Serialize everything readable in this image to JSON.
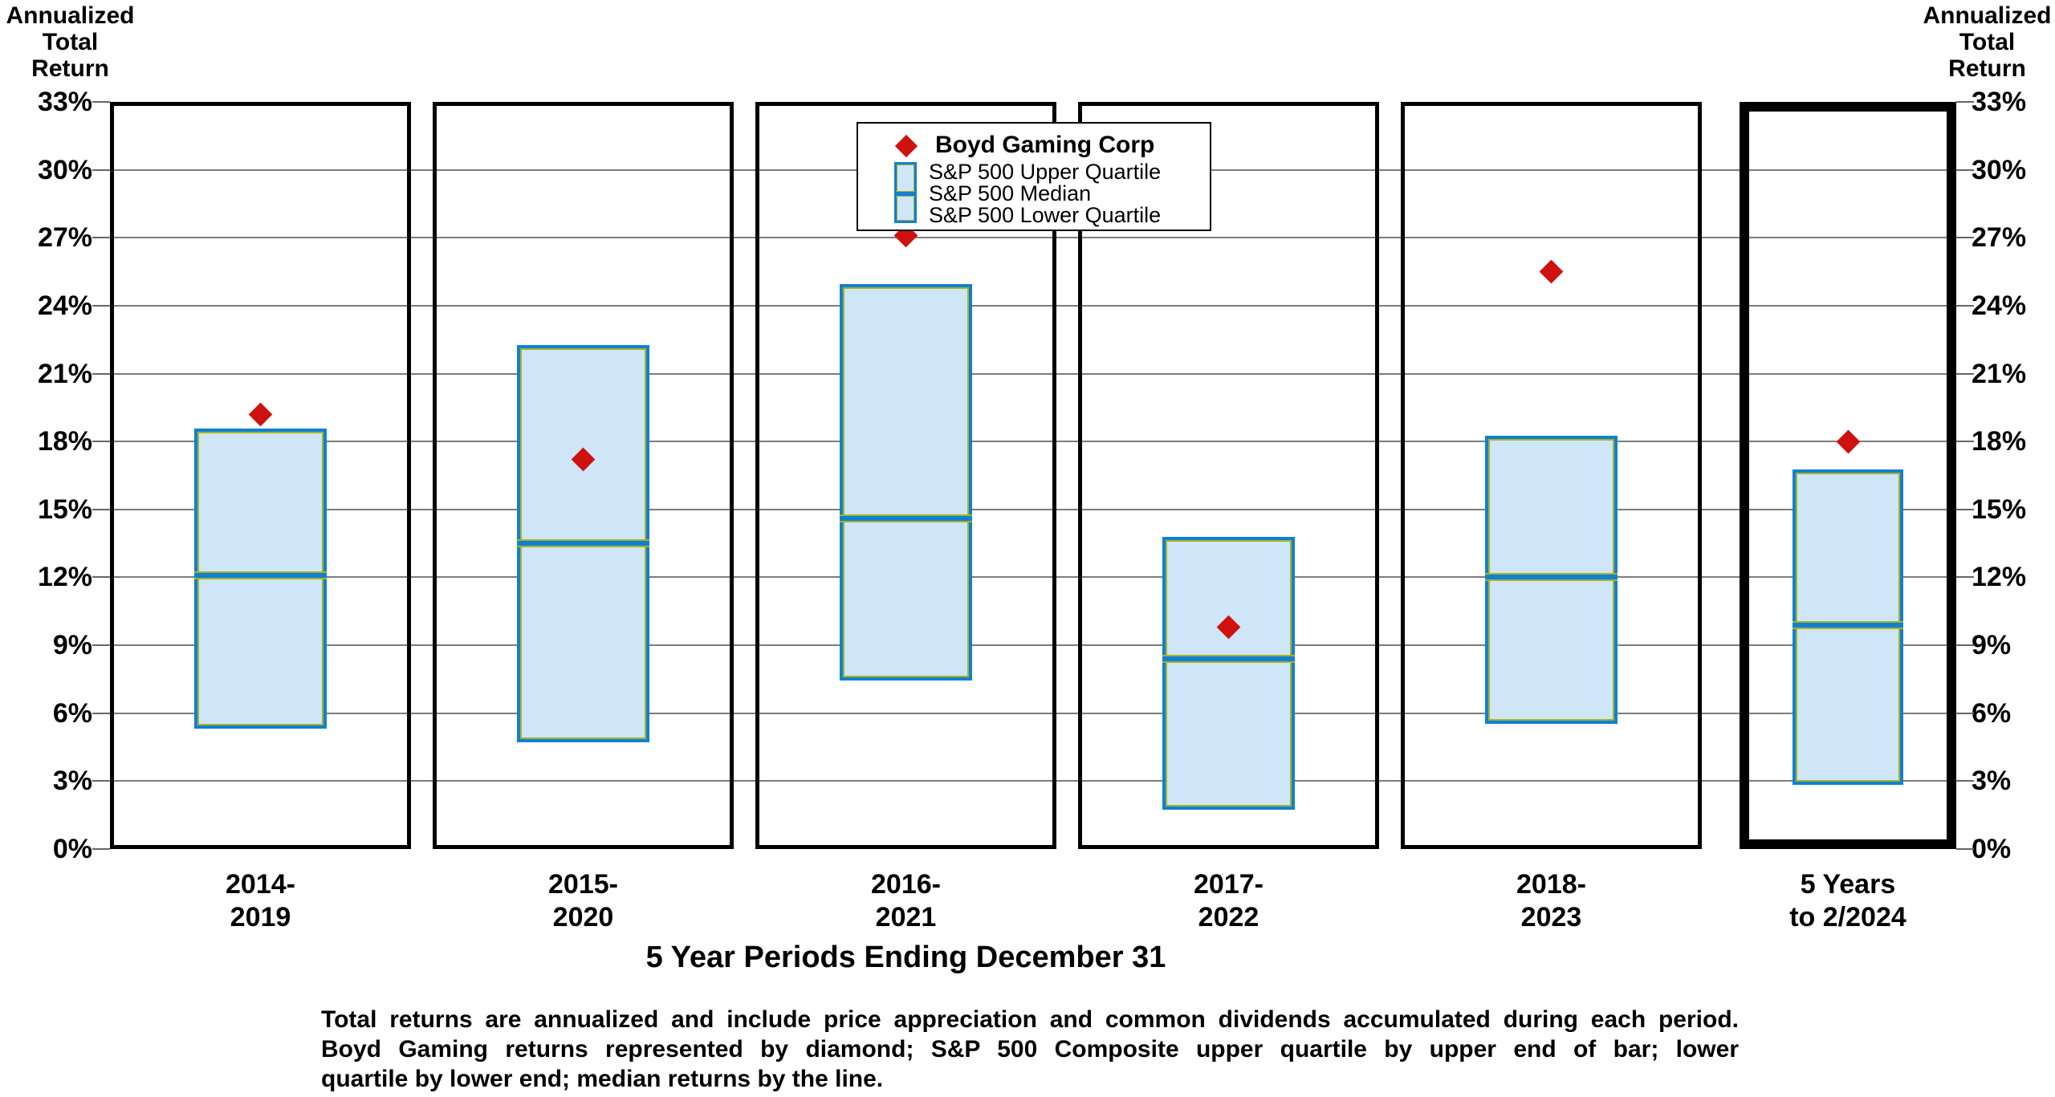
{
  "chart_data": {
    "type": "box-floating-bar",
    "y_axis_title": "Annualized\nTotal\nReturn",
    "x_axis_title": "5 Year Periods Ending December 31",
    "ylim": [
      0,
      33
    ],
    "y_tick_step": 3,
    "y_tick_suffix": "%",
    "grid": true,
    "legend": {
      "boyd": "Boyd Gaming Corp",
      "upper": "S&P 500 Upper Quartile",
      "median": "S&P 500 Median",
      "lower": "S&P 500 Lower Quartile"
    },
    "colors": {
      "diamond_red": "#cf1110",
      "box_fill": "#cfe5f8",
      "box_border_blue": "#1080d4",
      "box_inner_green": "#a6b420",
      "gridline_gray": "#7c7c7c"
    },
    "periods": [
      {
        "label": "2014-\n2019",
        "upper_quartile": 18.5,
        "median": 12.1,
        "lower_quartile": 5.4,
        "boyd_return": 19.2,
        "highlight": false
      },
      {
        "label": "2015-\n2020",
        "upper_quartile": 22.2,
        "median": 13.5,
        "lower_quartile": 4.8,
        "boyd_return": 17.2,
        "highlight": false
      },
      {
        "label": "2016-\n2021",
        "upper_quartile": 24.9,
        "median": 14.6,
        "lower_quartile": 7.5,
        "boyd_return": 27.1,
        "highlight": false
      },
      {
        "label": "2017-\n2022",
        "upper_quartile": 13.7,
        "median": 8.4,
        "lower_quartile": 1.8,
        "boyd_return": 9.8,
        "highlight": false
      },
      {
        "label": "2018-\n2023",
        "upper_quartile": 18.2,
        "median": 12.0,
        "lower_quartile": 5.6,
        "boyd_return": 25.5,
        "highlight": false
      },
      {
        "label": "5 Years\nto  2/2024",
        "upper_quartile": 16.7,
        "median": 9.9,
        "lower_quartile": 2.9,
        "boyd_return": 18.0,
        "highlight": true
      }
    ]
  },
  "footnote": {
    "line1": "Total returns are annualized and include price appreciation and common dividends accumulated during each period.",
    "line2": "Boyd Gaming returns represented by diamond; S&P 500 Composite upper quartile by upper end of bar; lower",
    "line3": "quartile by lower end; median returns by the line."
  }
}
